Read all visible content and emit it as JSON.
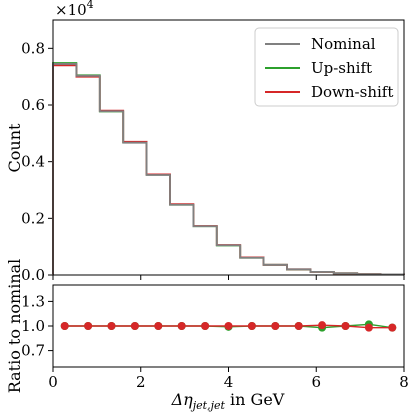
{
  "chart_data": [
    {
      "type": "step-histogram",
      "ylabel": "Count",
      "multiplier_text": "×10",
      "multiplier_exp": "4",
      "xlim": [
        0,
        8
      ],
      "ylim": [
        0,
        0.9
      ],
      "yscale_factor": 10000,
      "yticks": [
        0.0,
        0.2,
        0.4,
        0.6,
        0.8
      ],
      "ytick_labels": [
        "0.0",
        "0.2",
        "0.4",
        "0.6",
        "0.8"
      ],
      "bin_edges": [
        0,
        0.533,
        1.067,
        1.6,
        2.133,
        2.667,
        3.2,
        3.733,
        4.267,
        4.8,
        5.333,
        5.867,
        6.4,
        6.933,
        7.467,
        8.0
      ],
      "series": [
        {
          "name": "Nominal",
          "color": "#808080",
          "values": [
            0.745,
            0.703,
            0.578,
            0.467,
            0.353,
            0.248,
            0.172,
            0.105,
            0.061,
            0.036,
            0.02,
            0.011,
            0.006,
            0.003,
            0.002
          ]
        },
        {
          "name": "Up-shift",
          "color": "#2ca02c",
          "values": [
            0.748,
            0.705,
            0.577,
            0.468,
            0.354,
            0.248,
            0.172,
            0.104,
            0.061,
            0.036,
            0.019,
            0.011,
            0.006,
            0.003,
            0.002
          ]
        },
        {
          "name": "Down-shift",
          "color": "#d62728",
          "values": [
            0.74,
            0.7,
            0.58,
            0.47,
            0.355,
            0.25,
            0.173,
            0.106,
            0.062,
            0.036,
            0.02,
            0.011,
            0.006,
            0.003,
            0.002
          ]
        }
      ],
      "legend": {
        "location": "upper right",
        "entries": [
          "Nominal",
          "Up-shift",
          "Down-shift"
        ]
      }
    },
    {
      "type": "line",
      "xlabel_main": "Δη",
      "xlabel_sub": "jet,jet",
      "xlabel_suffix": " in GeV",
      "ylabel": "Ratio to nominal",
      "xlim": [
        0,
        8
      ],
      "ylim": [
        0.5,
        1.5
      ],
      "xticks": [
        0,
        2,
        4,
        6,
        8
      ],
      "xtick_labels": [
        "0",
        "2",
        "4",
        "6",
        "8"
      ],
      "yticks": [
        0.7,
        1.0,
        1.3
      ],
      "ytick_labels": [
        "0.7",
        "1.0",
        "1.3"
      ],
      "x": [
        0.267,
        0.8,
        1.333,
        1.867,
        2.4,
        2.933,
        3.467,
        4.0,
        4.533,
        5.067,
        5.6,
        6.133,
        6.667,
        7.2,
        7.733
      ],
      "series": [
        {
          "name": "Up-shift",
          "color": "#2ca02c",
          "values": [
            1.0,
            1.0,
            1.0,
            1.0,
            1.0,
            1.0,
            1.0,
            0.99,
            1.0,
            1.0,
            1.0,
            0.98,
            1.0,
            1.02,
            0.98
          ]
        },
        {
          "name": "Down-shift",
          "color": "#d62728",
          "values": [
            1.0,
            1.0,
            1.0,
            1.0,
            1.0,
            1.0,
            1.0,
            1.0,
            1.0,
            1.0,
            1.0,
            1.01,
            1.0,
            0.98,
            0.98
          ]
        }
      ]
    }
  ]
}
